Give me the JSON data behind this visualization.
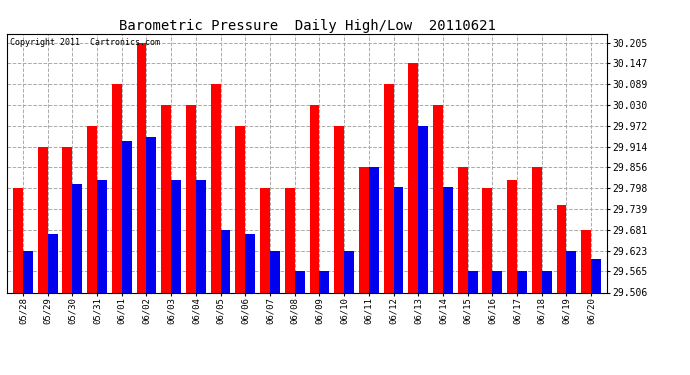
{
  "title": "Barometric Pressure  Daily High/Low  20110621",
  "copyright": "Copyright 2011  Cartronics.com",
  "dates": [
    "05/28",
    "05/29",
    "05/30",
    "05/31",
    "06/01",
    "06/02",
    "06/03",
    "06/04",
    "06/05",
    "06/06",
    "06/07",
    "06/08",
    "06/09",
    "06/10",
    "06/11",
    "06/12",
    "06/13",
    "06/14",
    "06/15",
    "06/16",
    "06/17",
    "06/18",
    "06/19",
    "06/20"
  ],
  "highs": [
    29.798,
    29.914,
    29.914,
    29.972,
    30.089,
    30.205,
    30.03,
    30.03,
    30.089,
    29.972,
    29.798,
    29.798,
    30.03,
    29.972,
    29.856,
    30.089,
    30.147,
    30.03,
    29.856,
    29.798,
    29.82,
    29.856,
    29.75,
    29.681
  ],
  "lows": [
    29.623,
    29.67,
    29.81,
    29.82,
    29.93,
    29.94,
    29.82,
    29.82,
    29.68,
    29.67,
    29.623,
    29.565,
    29.565,
    29.623,
    29.856,
    29.8,
    29.972,
    29.8,
    29.565,
    29.565,
    29.565,
    29.565,
    29.623,
    29.6
  ],
  "bar_width": 0.4,
  "high_color": "#ff0000",
  "low_color": "#0000ee",
  "bg_color": "#ffffff",
  "grid_color": "#aaaaaa",
  "title_fontsize": 10,
  "copyright_fontsize": 6,
  "ytick_fontsize": 7,
  "xtick_fontsize": 6.5,
  "yticks": [
    29.506,
    29.565,
    29.623,
    29.681,
    29.739,
    29.798,
    29.856,
    29.914,
    29.972,
    30.03,
    30.089,
    30.147,
    30.205
  ],
  "ymin": 29.506,
  "ymax": 30.23
}
